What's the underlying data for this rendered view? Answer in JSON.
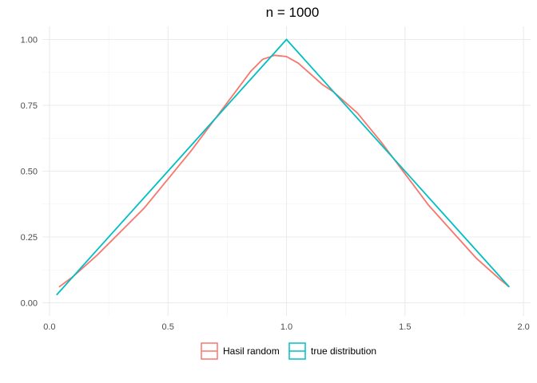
{
  "chart_data": {
    "type": "line",
    "title": "n = 1000",
    "xlabel": "",
    "ylabel": "",
    "xlim": [
      -0.03,
      2.03
    ],
    "ylim": [
      -0.05,
      1.05
    ],
    "x_ticks": [
      0.0,
      0.5,
      1.0,
      1.5,
      2.0
    ],
    "x_tick_labels": [
      "0.0",
      "0.5",
      "1.0",
      "1.5",
      "2.0"
    ],
    "y_ticks": [
      0.0,
      0.25,
      0.5,
      0.75,
      1.0
    ],
    "y_tick_labels": [
      "0.00",
      "0.25",
      "0.50",
      "0.75",
      "1.00"
    ],
    "grid": true,
    "legend_position": "bottom",
    "series": [
      {
        "name": "Hasil random",
        "color": "#F8766D",
        "x": [
          0.04,
          0.1,
          0.2,
          0.3,
          0.4,
          0.5,
          0.6,
          0.7,
          0.8,
          0.85,
          0.9,
          0.95,
          1.0,
          1.05,
          1.1,
          1.15,
          1.2,
          1.3,
          1.4,
          1.5,
          1.6,
          1.7,
          1.8,
          1.9,
          1.94
        ],
        "y": [
          0.06,
          0.1,
          0.18,
          0.27,
          0.36,
          0.47,
          0.58,
          0.7,
          0.82,
          0.88,
          0.925,
          0.94,
          0.935,
          0.91,
          0.87,
          0.83,
          0.8,
          0.72,
          0.61,
          0.49,
          0.37,
          0.27,
          0.17,
          0.09,
          0.06
        ]
      },
      {
        "name": "true distribution",
        "color": "#00BFC4",
        "x": [
          0.03,
          1.0,
          1.94
        ],
        "y": [
          0.03,
          1.0,
          0.06
        ]
      }
    ]
  }
}
